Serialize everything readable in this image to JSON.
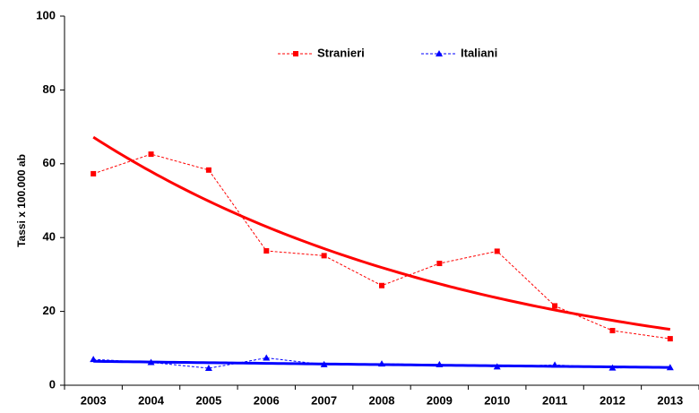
{
  "chart_data": {
    "type": "line",
    "y_label": "Tassi x 100.000 ab",
    "categories": [
      "2003",
      "2004",
      "2005",
      "2006",
      "2007",
      "2008",
      "2009",
      "2010",
      "2011",
      "2012",
      "2013"
    ],
    "series": [
      {
        "name": "Stranieri",
        "color": "#ff0000",
        "marker": "square",
        "values": [
          57.3,
          62.6,
          58.3,
          36.4,
          35.1,
          27.0,
          33.0,
          36.3,
          21.5,
          14.8,
          12.6
        ]
      },
      {
        "name": "Italiani",
        "color": "#0000ff",
        "marker": "triangle",
        "values": [
          7.0,
          6.2,
          4.6,
          7.4,
          5.6,
          5.8,
          5.6,
          5.0,
          5.5,
          4.7,
          4.8
        ]
      }
    ],
    "trendline": "exponential",
    "ylim": [
      0,
      100
    ],
    "yticks": [
      0,
      20,
      40,
      60,
      80,
      100
    ]
  }
}
